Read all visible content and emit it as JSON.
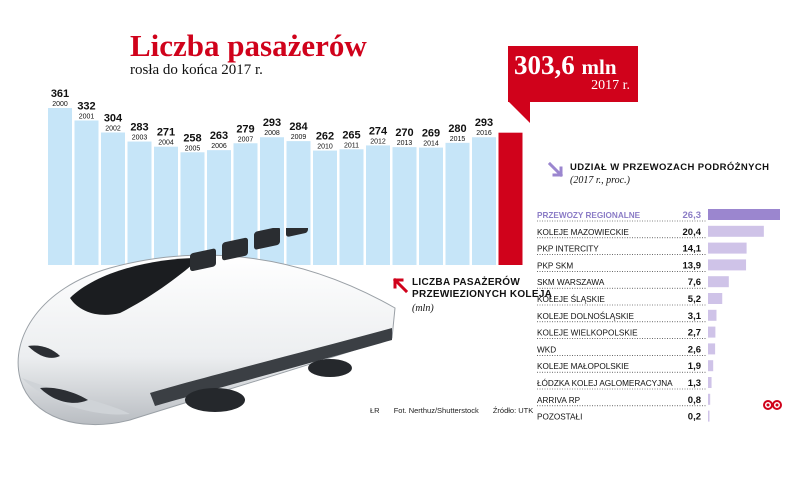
{
  "title": "Liczba pasażerów",
  "subtitle": "rosła do końca 2017 r.",
  "highlight": {
    "value": "303,6",
    "unit": "mln",
    "year": "2017 r."
  },
  "caption": {
    "line1": "Liczba pasażerów",
    "line2": "przewiezionych koleją",
    "line3": "(mln)"
  },
  "credits": {
    "initials": "ŁR",
    "photo": "Fot. Nerthuz/Shutterstock",
    "source": "Źródło: UTK"
  },
  "share_header": {
    "title": "Udział w przewozach podróżnych",
    "subtitle": "(2017 r., proc.)"
  },
  "colors": {
    "bar": "#c6e5f8",
    "highlight": "#d0021b",
    "share_bar": "#cfc3e8",
    "share_bar_top": "#9b86cf",
    "share_label_top": "#8b7cc6"
  },
  "chart_data": [
    {
      "type": "bar",
      "categories": [
        "2000",
        "2001",
        "2002",
        "2003",
        "2004",
        "2005",
        "2006",
        "2007",
        "2008",
        "2009",
        "2010",
        "2011",
        "2012",
        "2013",
        "2014",
        "2015",
        "2016",
        "2017"
      ],
      "values": [
        361,
        332,
        304,
        283,
        271,
        258,
        263,
        279,
        293,
        284,
        262,
        265,
        274,
        270,
        269,
        280,
        293,
        303.6
      ],
      "value_labels": [
        "361",
        "332",
        "304",
        "283",
        "271",
        "258",
        "263",
        "279",
        "293",
        "284",
        "262",
        "265",
        "274",
        "270",
        "269",
        "280",
        "293",
        ""
      ],
      "highlight_index": 17
    },
    {
      "type": "bar",
      "orientation": "horizontal",
      "categories": [
        "PRZEWOZY REGIONALNE",
        "KOLEJE MAZOWIECKIE",
        "PKP INTERCITY",
        "PKP SKM",
        "SKM WARSZAWA",
        "KOLEJE ŚLĄSKIE",
        "KOLEJE DOLNOŚLĄSKIE",
        "KOLEJE WIELKOPOLSKIE",
        "WKD",
        "KOLEJE MAŁOPOLSKIE",
        "ŁÓDZKA KOLEJ AGLOMERACYJNA",
        "ARRIVA RP",
        "POZOSTAŁI"
      ],
      "values": [
        26.3,
        20.4,
        14.1,
        13.9,
        7.6,
        5.2,
        3.1,
        2.7,
        2.6,
        1.9,
        1.3,
        0.8,
        0.2
      ],
      "value_labels": [
        "26,3",
        "20,4",
        "14,1",
        "13,9",
        "7,6",
        "5,2",
        "3,1",
        "2,7",
        "2,6",
        "1,9",
        "1,3",
        "0,8",
        "0,2"
      ]
    }
  ]
}
